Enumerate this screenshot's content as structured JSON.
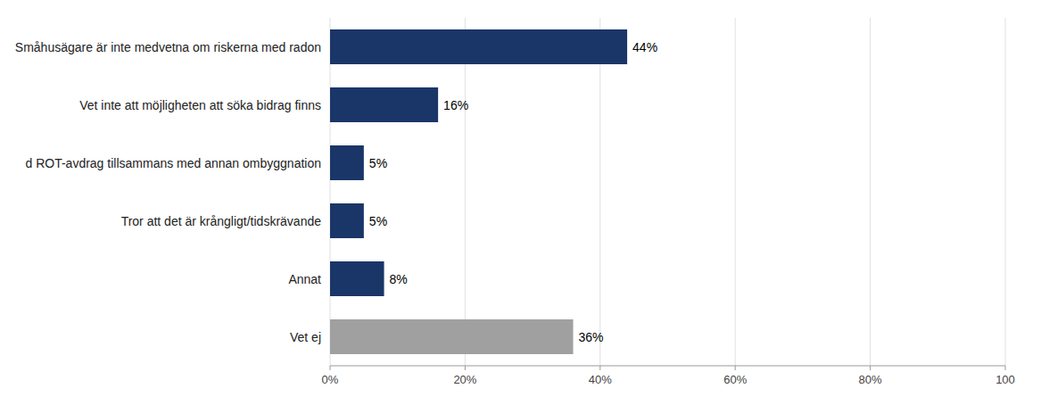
{
  "chart_data": {
    "type": "bar",
    "orientation": "horizontal",
    "categories": [
      "Småhusägare är inte medvetna om riskerna med radon",
      "Vet inte att möjligheten att söka bidrag finns",
      "d ROT-avdrag tillsammans med annan ombyggnation",
      "Tror att det är krångligt/tidskrävande",
      "Annat",
      "Vet ej"
    ],
    "values": [
      44,
      16,
      5,
      5,
      8,
      36
    ],
    "value_labels": [
      "44%",
      "16%",
      "5%",
      "5%",
      "8%",
      "36%"
    ],
    "colors": [
      "#1a3668",
      "#1a3668",
      "#1a3668",
      "#1a3668",
      "#1a3668",
      "#a0a0a0"
    ],
    "xlim": [
      0,
      100
    ],
    "xticks": [
      {
        "value": 0,
        "label": "0%"
      },
      {
        "value": 20,
        "label": "20%"
      },
      {
        "value": 40,
        "label": "40%"
      },
      {
        "value": 60,
        "label": "60%"
      },
      {
        "value": 80,
        "label": "80%"
      },
      {
        "value": 100,
        "label": "100"
      }
    ],
    "grid": true,
    "data_labels": true
  }
}
